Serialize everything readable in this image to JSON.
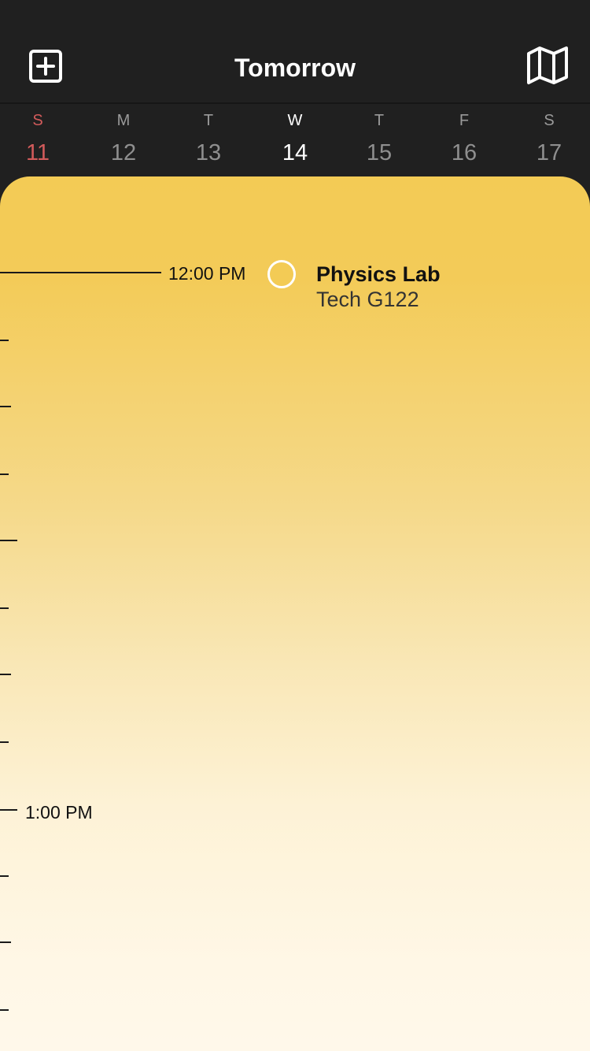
{
  "header": {
    "title": "Tomorrow",
    "add_icon": "plus-square-icon",
    "map_icon": "map-icon"
  },
  "week": {
    "days": [
      {
        "dow": "S",
        "num": "11",
        "state": "sunday"
      },
      {
        "dow": "M",
        "num": "12",
        "state": "normal"
      },
      {
        "dow": "T",
        "num": "13",
        "state": "normal"
      },
      {
        "dow": "W",
        "num": "14",
        "state": "selected"
      },
      {
        "dow": "T",
        "num": "15",
        "state": "normal"
      },
      {
        "dow": "F",
        "num": "16",
        "state": "normal"
      },
      {
        "dow": "S",
        "num": "17",
        "state": "normal"
      }
    ]
  },
  "timeline": {
    "hours": [
      "12:00 PM",
      "1:00 PM"
    ],
    "event": {
      "title": "Physics Lab",
      "location": "Tech G122",
      "color": "#f3cb55"
    }
  },
  "colors": {
    "background": "#202020",
    "accent": "#f3cb55",
    "sunday": "#d25b5b"
  }
}
